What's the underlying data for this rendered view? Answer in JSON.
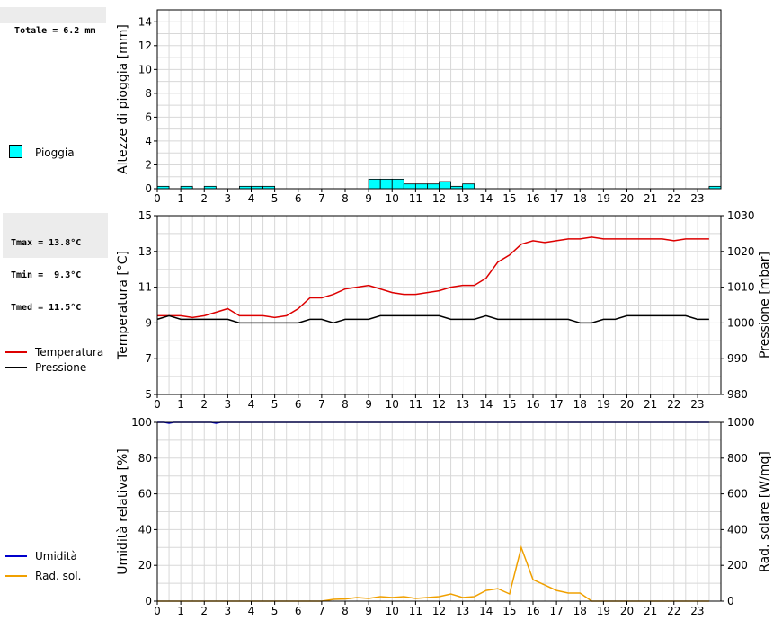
{
  "rain_total": "Totale = 6.2 mm",
  "temp_stats": [
    "Tmax = 13.8°C",
    "Tmin =  9.3°C",
    "Tmed = 11.5°C"
  ],
  "legend": {
    "rain": "Pioggia",
    "temperature": "Temperatura",
    "pressure": "Pressione",
    "humidity": "Umidità",
    "solar": "Rad. sol."
  },
  "colors": {
    "rain_fill": "#00ffff",
    "temperature": "#dd0000",
    "pressure": "#000000",
    "humidity": "#0000cc",
    "solar": "#f0a000",
    "grid": "#d8d8d8"
  },
  "chart_data": [
    {
      "type": "bar",
      "ylabel": "Altezze di pioggia [mm]",
      "ylim": [
        0,
        15
      ],
      "yticks": [
        0,
        2,
        4,
        6,
        8,
        10,
        12,
        14
      ],
      "xticks": [
        0,
        1,
        2,
        3,
        4,
        5,
        6,
        7,
        8,
        9,
        10,
        11,
        12,
        13,
        14,
        15,
        16,
        17,
        18,
        19,
        20,
        21,
        22,
        23
      ],
      "xlim": [
        0,
        24
      ],
      "bins": [
        {
          "x": 0.0,
          "v": 0.2
        },
        {
          "x": 1.0,
          "v": 0.2
        },
        {
          "x": 2.0,
          "v": 0.2
        },
        {
          "x": 3.5,
          "v": 0.2
        },
        {
          "x": 4.0,
          "v": 0.2
        },
        {
          "x": 4.5,
          "v": 0.2
        },
        {
          "x": 9.0,
          "v": 0.8
        },
        {
          "x": 9.5,
          "v": 0.8
        },
        {
          "x": 10.0,
          "v": 0.8
        },
        {
          "x": 10.5,
          "v": 0.4
        },
        {
          "x": 11.0,
          "v": 0.4
        },
        {
          "x": 11.5,
          "v": 0.4
        },
        {
          "x": 12.0,
          "v": 0.6
        },
        {
          "x": 12.5,
          "v": 0.2
        },
        {
          "x": 13.0,
          "v": 0.4
        },
        {
          "x": 23.5,
          "v": 0.2
        }
      ],
      "bin_width": 0.5,
      "grid": true
    },
    {
      "type": "line",
      "ylabel": "Temperatura [°C]",
      "y2label": "Pressione [mbar]",
      "ylim": [
        5,
        15
      ],
      "yticks": [
        5,
        7,
        9,
        11,
        13,
        15
      ],
      "y2lim": [
        980,
        1030
      ],
      "y2ticks": [
        980,
        990,
        1000,
        1010,
        1020,
        1030
      ],
      "xticks": [
        0,
        1,
        2,
        3,
        4,
        5,
        6,
        7,
        8,
        9,
        10,
        11,
        12,
        13,
        14,
        15,
        16,
        17,
        18,
        19,
        20,
        21,
        22,
        23
      ],
      "xlim": [
        0,
        24
      ],
      "series": [
        {
          "name": "Temperatura",
          "axis": "left",
          "x": [
            0,
            0.5,
            1,
            1.5,
            2,
            2.5,
            3,
            3.5,
            4,
            4.5,
            5,
            5.5,
            6,
            6.5,
            7,
            7.5,
            8,
            8.5,
            9,
            9.5,
            10,
            10.5,
            11,
            11.5,
            12,
            12.5,
            13,
            13.5,
            14,
            14.5,
            15,
            15.5,
            16,
            16.5,
            17,
            17.5,
            18,
            18.5,
            19,
            19.5,
            20,
            20.5,
            21,
            21.5,
            22,
            22.5,
            23,
            23.5
          ],
          "y": [
            9.4,
            9.4,
            9.4,
            9.3,
            9.4,
            9.6,
            9.8,
            9.4,
            9.4,
            9.4,
            9.3,
            9.4,
            9.8,
            10.4,
            10.4,
            10.6,
            10.9,
            11.0,
            11.1,
            10.9,
            10.7,
            10.6,
            10.6,
            10.7,
            10.8,
            11.0,
            11.1,
            11.1,
            11.5,
            12.4,
            12.8,
            13.4,
            13.6,
            13.5,
            13.6,
            13.7,
            13.7,
            13.8,
            13.7,
            13.7,
            13.7,
            13.7,
            13.7,
            13.7,
            13.6,
            13.7,
            13.7,
            13.7
          ]
        },
        {
          "name": "Pressione",
          "axis": "right",
          "x": [
            0,
            0.5,
            1,
            1.5,
            2,
            2.5,
            3,
            3.5,
            4,
            4.5,
            5,
            5.5,
            6,
            6.5,
            7,
            7.5,
            8,
            8.5,
            9,
            9.5,
            10,
            10.5,
            11,
            11.5,
            12,
            12.5,
            13,
            13.5,
            14,
            14.5,
            15,
            15.5,
            16,
            16.5,
            17,
            17.5,
            18,
            18.5,
            19,
            19.5,
            20,
            20.5,
            21,
            21.5,
            22,
            22.5,
            23,
            23.5
          ],
          "y": [
            1001,
            1002,
            1001,
            1001,
            1001,
            1001,
            1001,
            1000,
            1000,
            1000,
            1000,
            1000,
            1000,
            1001,
            1001,
            1000,
            1001,
            1001,
            1001,
            1002,
            1002,
            1002,
            1002,
            1002,
            1002,
            1001,
            1001,
            1001,
            1002,
            1001,
            1001,
            1001,
            1001,
            1001,
            1001,
            1001,
            1000,
            1000,
            1001,
            1001,
            1002,
            1002,
            1002,
            1002,
            1002,
            1002,
            1001,
            1001
          ]
        }
      ],
      "grid": true
    },
    {
      "type": "line",
      "ylabel": "Umidità relativa [%]",
      "y2label": "Rad. solare [W/mq]",
      "ylim": [
        0,
        100
      ],
      "yticks": [
        0,
        20,
        40,
        60,
        80,
        100
      ],
      "y2lim": [
        0,
        1000
      ],
      "y2ticks": [
        0,
        200,
        400,
        600,
        800,
        1000
      ],
      "xticks": [
        0,
        1,
        2,
        3,
        4,
        5,
        6,
        7,
        8,
        9,
        10,
        11,
        12,
        13,
        14,
        15,
        16,
        17,
        18,
        19,
        20,
        21,
        22,
        23
      ],
      "xlim": [
        0,
        24
      ],
      "series": [
        {
          "name": "Umidità",
          "axis": "left",
          "x": [
            0,
            0.3,
            0.5,
            0.7,
            1,
            2,
            2.3,
            2.5,
            2.7,
            3,
            23.5
          ],
          "y": [
            100,
            100,
            99.5,
            100,
            100,
            100,
            100,
            99.5,
            100,
            100,
            100
          ]
        },
        {
          "name": "Rad. sol.",
          "axis": "right",
          "x": [
            0,
            0.5,
            1,
            1.5,
            2,
            2.5,
            3,
            3.5,
            4,
            4.5,
            5,
            5.5,
            6,
            6.5,
            7,
            7.5,
            8,
            8.5,
            9,
            9.5,
            10,
            10.5,
            11,
            11.5,
            12,
            12.5,
            13,
            13.5,
            14,
            14.5,
            15,
            15.5,
            16,
            16.5,
            17,
            17.5,
            18,
            18.5,
            19,
            19.5,
            20,
            20.5,
            21,
            21.5,
            22,
            22.5,
            23,
            23.5
          ],
          "y": [
            0,
            0,
            0,
            0,
            0,
            0,
            0,
            0,
            0,
            0,
            0,
            0,
            0,
            0,
            0,
            10,
            12,
            20,
            15,
            25,
            20,
            25,
            15,
            20,
            25,
            40,
            20,
            25,
            60,
            70,
            40,
            300,
            120,
            90,
            60,
            45,
            45,
            0,
            0,
            0,
            0,
            0,
            0,
            0,
            0,
            0,
            0,
            0
          ]
        }
      ],
      "grid": true
    }
  ]
}
